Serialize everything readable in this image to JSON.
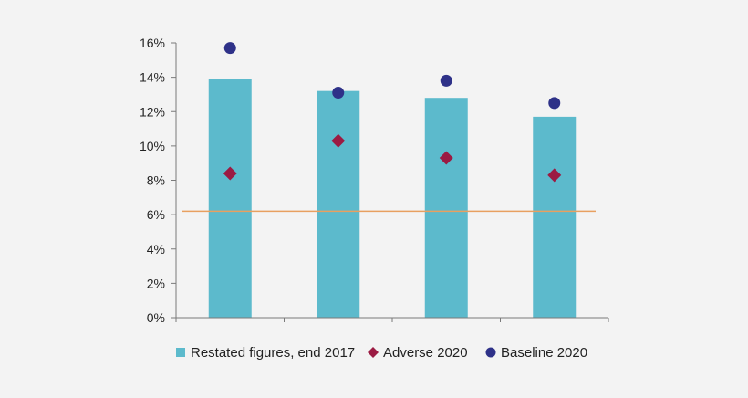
{
  "chart_data": {
    "type": "bar",
    "categories": [
      "",
      "",
      "",
      ""
    ],
    "y_tick_labels": [
      "0%",
      "2%",
      "4%",
      "6%",
      "8%",
      "10%",
      "12%",
      "14%",
      "16%"
    ],
    "ylim": [
      0,
      16
    ],
    "grid": false,
    "legend_position": "bottom",
    "reference_line": {
      "value": 6.2,
      "color": "#e8a060"
    },
    "series": [
      {
        "name": "Restated figures, end 2017",
        "kind": "bar",
        "marker": "square",
        "color": "#5cbacc",
        "values": [
          13.9,
          13.2,
          12.8,
          11.7
        ]
      },
      {
        "name": "Adverse 2020",
        "kind": "point",
        "marker": "diamond",
        "color": "#9b1b43",
        "values": [
          8.4,
          10.3,
          9.3,
          8.3
        ]
      },
      {
        "name": "Baseline 2020",
        "kind": "point",
        "marker": "circle",
        "color": "#2e3188",
        "values": [
          15.7,
          13.1,
          13.8,
          12.5
        ]
      }
    ]
  }
}
